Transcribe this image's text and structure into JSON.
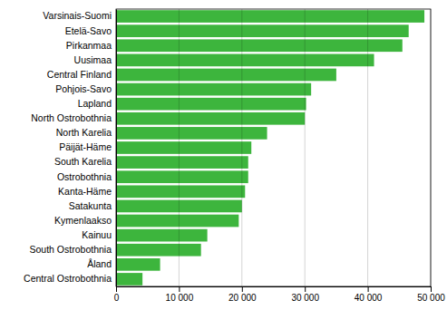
{
  "chart_data": {
    "type": "bar",
    "orientation": "horizontal",
    "categories": [
      "Central Ostrobothnia",
      "Åland",
      "South Ostrobothnia",
      "Kainuu",
      "Kymenlaakso",
      "Satakunta",
      "Kanta-Häme",
      "Ostrobothnia",
      "South Karelia",
      "Päijät-Häme",
      "North Karelia",
      "North Ostrobothnia",
      "Lapland",
      "Pohjois-Savo",
      "Central Finland",
      "Uusimaa",
      "Pirkanmaa",
      "Etelä-Savo",
      "Varsinais-Suomi"
    ],
    "values": [
      4200,
      7000,
      13500,
      14500,
      19500,
      20000,
      20500,
      21000,
      21000,
      21500,
      24000,
      30000,
      30200,
      31000,
      35000,
      41000,
      45500,
      46500,
      49000
    ],
    "color": "#3db53d",
    "xlim": [
      0,
      50000
    ],
    "xticks": [
      0,
      {
        "value": 10000,
        "label": "10 000"
      },
      {
        "value": 20000,
        "label": "20 000"
      },
      {
        "value": 30000,
        "label": "30 000"
      },
      {
        "value": 40000,
        "label": "40 000"
      },
      {
        "value": 50000,
        "label": "50 000"
      }
    ],
    "grid": true
  }
}
